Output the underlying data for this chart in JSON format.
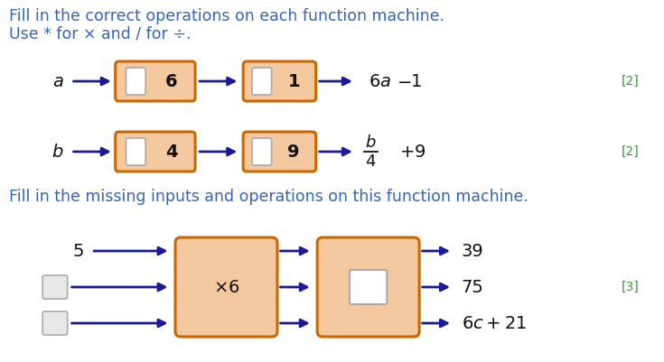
{
  "bg_color": "#ffffff",
  "text_color_blue": "#3366bb",
  "text_color_dark": "#111111",
  "text_color_green": "#339933",
  "box_fill": "#f5c9a0",
  "box_edge": "#cc6600",
  "arrow_color": "#1a1a99",
  "line1_title": "Fill in the correct operations on each function machine.",
  "line2_title": "Use * for × and / for ÷.",
  "line3_title": "Fill in the missing inputs and operations on this function machine.",
  "mark1": "[2]",
  "mark2": "[2]",
  "mark3": "[3]"
}
